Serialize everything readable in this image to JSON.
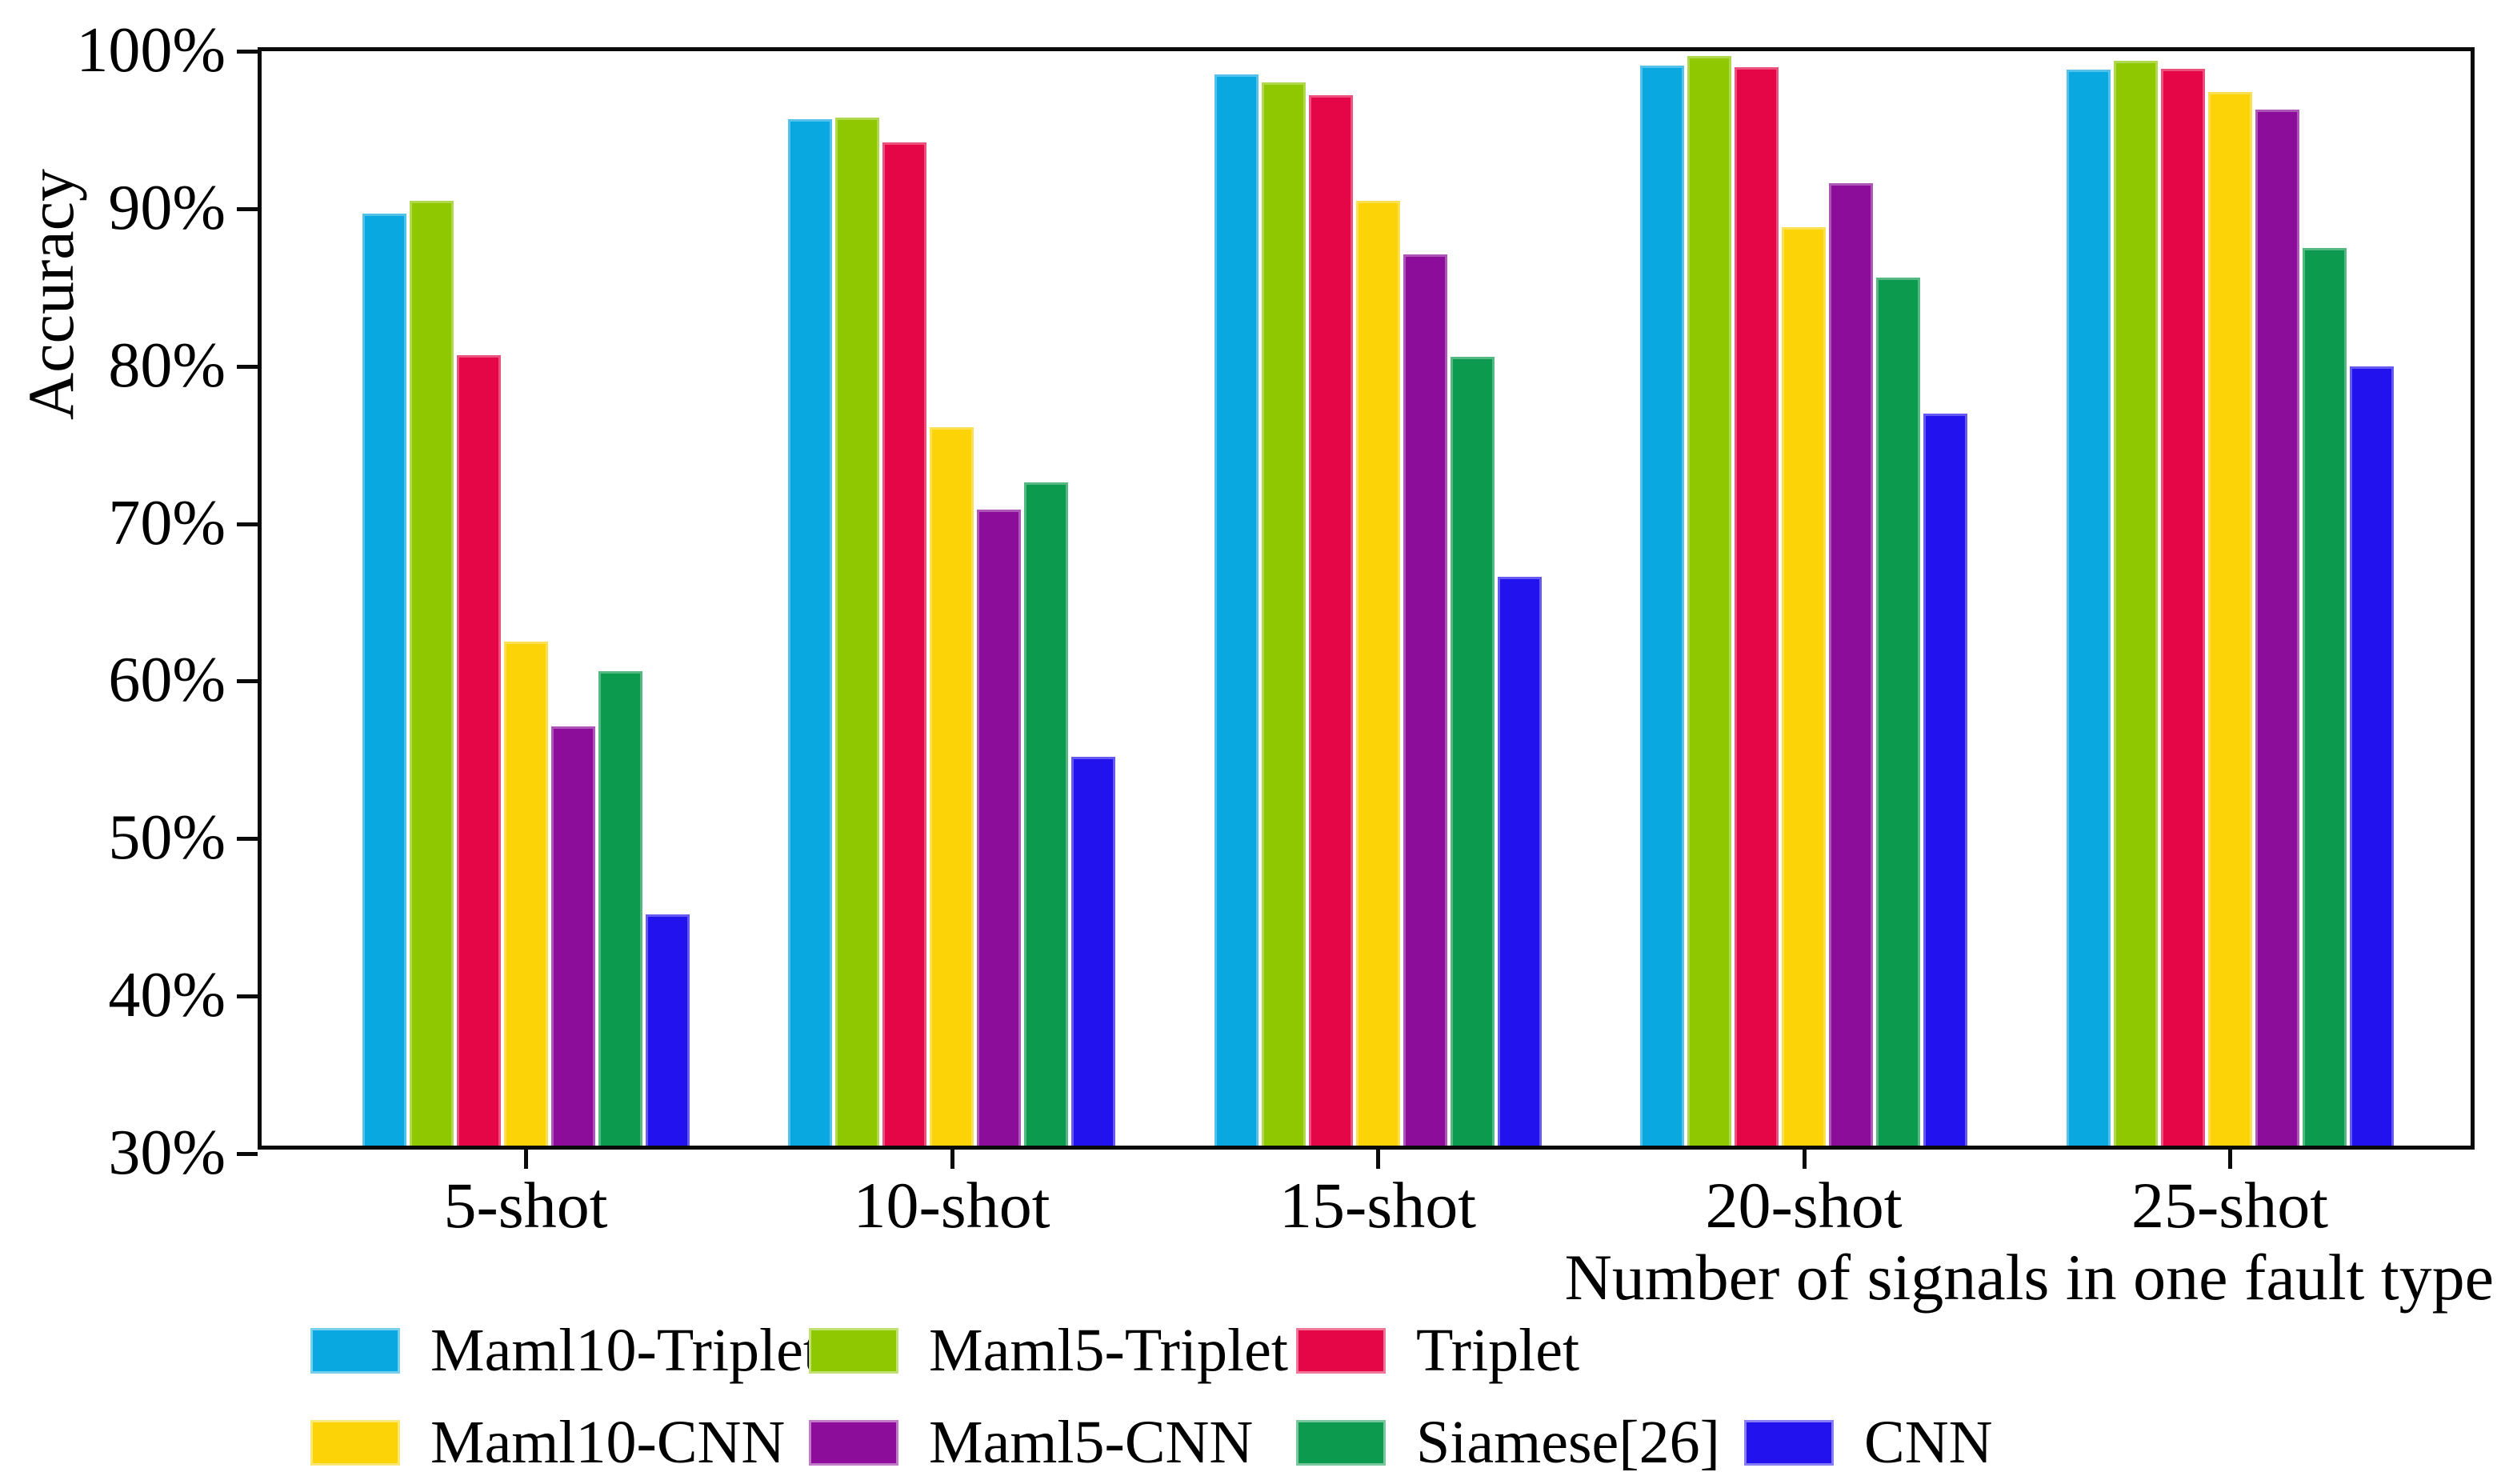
{
  "chart_data": {
    "type": "bar",
    "title": "",
    "ylabel": "Accuracy",
    "xlabel": "Number of signals in one fault type",
    "categories": [
      "5-shot",
      "10-shot",
      "15-shot",
      "20-shot",
      "25-shot"
    ],
    "y_axis": {
      "min": 30,
      "max": 100,
      "tick_step": 10,
      "tick_labels": [
        "30%",
        "40%",
        "50%",
        "60%",
        "70%",
        "80%",
        "90%",
        "100%"
      ],
      "unit": "percent"
    },
    "grid": false,
    "legend_position": "below-left",
    "legend_rows": [
      [
        0,
        1,
        2
      ],
      [
        3,
        4,
        5,
        6
      ]
    ],
    "series": [
      {
        "name": "Maml10-Triplet",
        "color": "#09A8E1",
        "values": [
          89.2,
          95.2,
          98.0,
          98.6,
          98.3
        ]
      },
      {
        "name": "Maml5-Triplet",
        "color": "#8FC801",
        "values": [
          90.0,
          95.3,
          97.5,
          99.2,
          98.9
        ]
      },
      {
        "name": "Triplet",
        "color": "#E40646",
        "values": [
          80.2,
          93.7,
          96.7,
          98.5,
          98.4
        ]
      },
      {
        "name": "Maml10-CNN",
        "color": "#FBD307",
        "values": [
          62.0,
          75.6,
          90.0,
          88.3,
          96.9
        ]
      },
      {
        "name": "Maml5-CNN",
        "color": "#8C0D9A",
        "values": [
          56.6,
          70.4,
          86.6,
          91.1,
          95.8
        ]
      },
      {
        "name": "Siamese[26]",
        "color": "#0C9A4E",
        "values": [
          60.1,
          72.1,
          80.1,
          85.1,
          87.0
        ]
      },
      {
        "name": "CNN",
        "color": "#2112EE",
        "values": [
          44.7,
          54.7,
          66.1,
          76.5,
          79.5
        ]
      }
    ],
    "axis_color": "#0a0a0a"
  }
}
